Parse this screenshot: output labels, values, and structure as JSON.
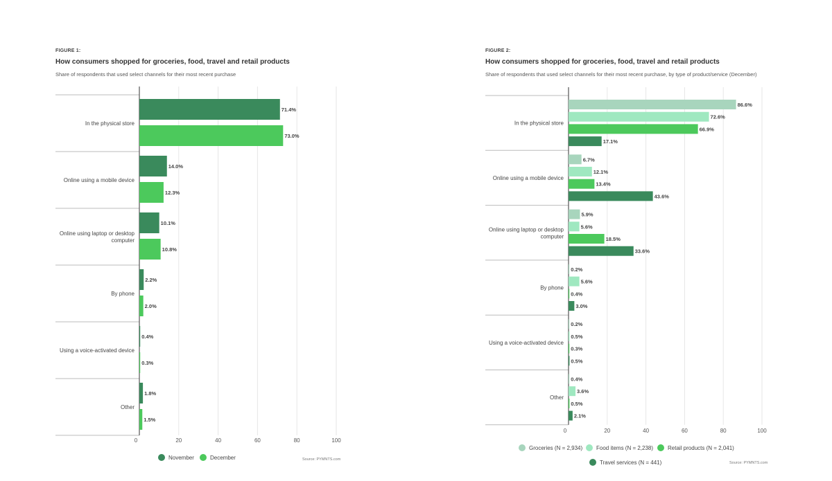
{
  "chart_data": [
    {
      "type": "bar",
      "orientation": "horizontal",
      "figure_label": "FIGURE 1:",
      "title": "How consumers shopped for groceries, food, travel and retail products",
      "subtitle": "Share of respondents that used select channels for their most recent purchase",
      "categories": [
        "In the physical store",
        "Online using a mobile device",
        "Online using laptop or desktop computer",
        "By phone",
        "Using a voice-activated device",
        "Other"
      ],
      "series": [
        {
          "name": "November",
          "color": "#3a8a5c",
          "values": [
            71.4,
            14.0,
            10.1,
            2.2,
            0.4,
            1.8
          ],
          "labels": [
            "71.4%",
            "14.0%",
            "10.1%",
            "2.2%",
            "0.4%",
            "1.8%"
          ]
        },
        {
          "name": "December",
          "color": "#4cc95c",
          "values": [
            73.0,
            12.3,
            10.8,
            2.0,
            0.3,
            1.5
          ],
          "labels": [
            "73.0%",
            "12.3%",
            "10.8%",
            "2.0%",
            "0.3%",
            "1.5%"
          ]
        }
      ],
      "xlim": [
        0,
        100
      ],
      "xticks": [
        0,
        20,
        40,
        60,
        80,
        100
      ],
      "tick_labels": [
        "0",
        "20",
        "40",
        "60",
        "80",
        "100"
      ],
      "grid": true,
      "legend_position": "bottom-center",
      "source": "Source: PYMNTS.com"
    },
    {
      "type": "bar",
      "orientation": "horizontal",
      "figure_label": "FIGURE 2:",
      "title": "How consumers shopped for groceries, food, travel and retail products",
      "subtitle": "Share of respondents that used select channels for their most recent purchase, by type of product/service (December)",
      "categories": [
        "In the physical store",
        "Online using a mobile device",
        "Online using laptop or desktop computer",
        "By phone",
        "Using a voice-activated device",
        "Other"
      ],
      "series": [
        {
          "name": "Groceries (N = 2,934)",
          "color": "#a8d5bd",
          "values": [
            86.6,
            6.7,
            5.9,
            0.2,
            0.2,
            0.4
          ],
          "labels": [
            "86.6%",
            "6.7%",
            "5.9%",
            "0.2%",
            "0.2%",
            "0.4%"
          ]
        },
        {
          "name": "Food items (N = 2,238)",
          "color": "#9fe8c0",
          "values": [
            72.6,
            12.1,
            5.6,
            5.6,
            0.5,
            3.6
          ],
          "labels": [
            "72.6%",
            "12.1%",
            "5.6%",
            "5.6%",
            "0.5%",
            "3.6%"
          ]
        },
        {
          "name": "Retail products (N = 2,041)",
          "color": "#4cc95c",
          "values": [
            66.9,
            13.4,
            18.5,
            0.4,
            0.3,
            0.5
          ],
          "labels": [
            "66.9%",
            "13.4%",
            "18.5%",
            "0.4%",
            "0.3%",
            "0.5%"
          ]
        },
        {
          "name": "Travel services (N = 441)",
          "color": "#3a8a5c",
          "values": [
            17.1,
            43.6,
            33.6,
            3.0,
            0.5,
            2.1
          ],
          "labels": [
            "17.1%",
            "43.6%",
            "33.6%",
            "3.0%",
            "0.5%",
            "2.1%"
          ]
        }
      ],
      "xlim": [
        0,
        100
      ],
      "xticks": [
        0,
        20,
        40,
        60,
        80,
        100
      ],
      "tick_labels": [
        "0",
        "20",
        "40",
        "60",
        "80",
        "100"
      ],
      "grid": true,
      "legend_position": "bottom-center",
      "source": "Source: PYMNTS.com"
    }
  ]
}
